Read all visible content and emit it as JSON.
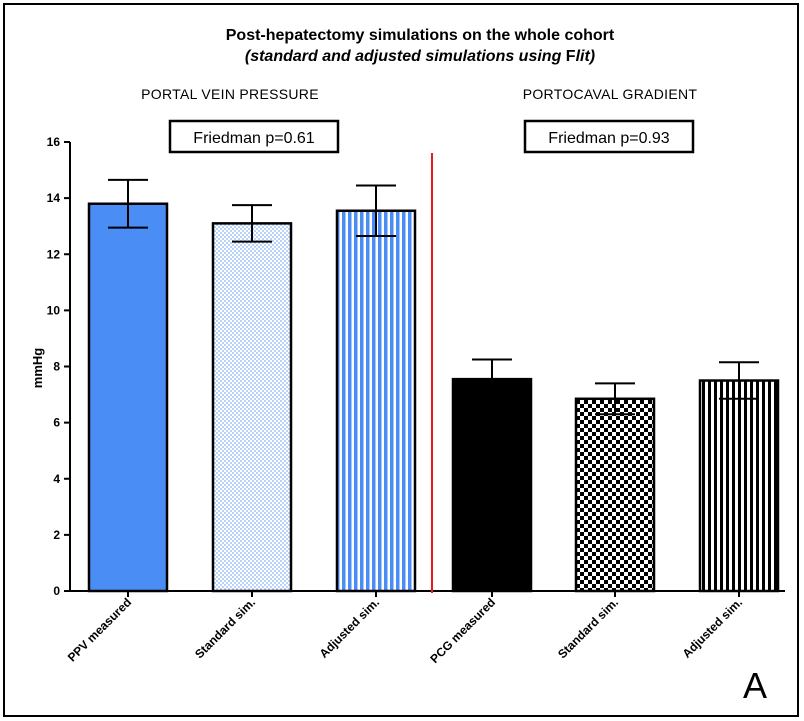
{
  "chart_data": {
    "type": "bar",
    "title": "Post-hepatectomy simulations on the whole cohort",
    "subtitle_prefix": "(standard and adjusted simulations using ",
    "subtitle_symbol": "F",
    "subtitle_suffix": "lit)",
    "ylabel": "mmHg",
    "xlabel": "",
    "ylim": [
      0,
      16
    ],
    "yticks": [
      0,
      2,
      4,
      6,
      8,
      10,
      12,
      14,
      16
    ],
    "groups": [
      {
        "name": "PORTAL VEIN PRESSURE",
        "stat_label": "Friedman p=0.61",
        "categories": [
          "PPV measured",
          "Standard sim.",
          "Adjusted sim."
        ],
        "values": [
          13.8,
          13.1,
          13.55
        ],
        "errors": [
          0.85,
          0.65,
          0.9
        ],
        "fills": [
          "solid-blue",
          "crosshatch-lightblue",
          "vstripes-blue"
        ]
      },
      {
        "name": "PORTOCAVAL GRADIENT",
        "stat_label": "Friedman p=0.93",
        "categories": [
          "PCG measured",
          "Standard sim.",
          "Adjusted sim."
        ],
        "values": [
          7.55,
          6.85,
          7.5
        ],
        "errors": [
          0.7,
          0.55,
          0.65
        ],
        "fills": [
          "solid-black",
          "checker-black",
          "vstripes-black"
        ]
      }
    ],
    "panel_label": "A",
    "colors": {
      "blue": "#4a8df5",
      "light_blue": "#b8d2f8",
      "black": "#000000",
      "divider": "#e8191b"
    }
  }
}
